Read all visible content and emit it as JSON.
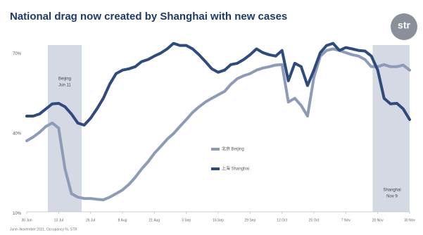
{
  "chart_data": {
    "type": "line",
    "title": "National drag now created by Shanghai with new cases",
    "logo": "str",
    "footer": "June–November 2021, Occupancy %, STR",
    "categories": [
      "30 Jun",
      null,
      null,
      null,
      null,
      "13 Jul",
      null,
      null,
      null,
      null,
      "26 Jul",
      null,
      null,
      null,
      null,
      "8 Aug",
      null,
      null,
      null,
      null,
      "21 Aug",
      null,
      null,
      null,
      null,
      "3 Sep",
      null,
      null,
      null,
      null,
      "16 Sep",
      null,
      null,
      null,
      null,
      "29 Sep",
      null,
      null,
      null,
      null,
      "12 Oct",
      null,
      null,
      null,
      null,
      "25 Oct",
      null,
      null,
      null,
      null,
      "7 Nov",
      null,
      null,
      null,
      null,
      "20 Nov",
      null,
      null,
      null,
      null,
      "30 Nov"
    ],
    "series": [
      {
        "name": "北京 Beijing",
        "color": "#8e9bb8",
        "values": [
          37.3,
          38.7,
          40.5,
          42.7,
          44,
          42.1,
          26.7,
          17.4,
          16.1,
          15.6,
          15.6,
          15.3,
          15.1,
          16.1,
          17.4,
          18.8,
          20.9,
          23.5,
          26.7,
          29.4,
          32.6,
          35.2,
          37.9,
          40,
          42.7,
          45.3,
          48,
          50.1,
          51.9,
          53.3,
          54.6,
          55.9,
          58.6,
          60.7,
          61.8,
          62.6,
          63.9,
          64.7,
          65.2,
          65.8,
          66,
          51.9,
          53.3,
          50.6,
          46.6,
          61.2,
          69.2,
          71.3,
          71.9,
          71.3,
          70.5,
          69.7,
          69.2,
          67.9,
          65.2,
          65.2,
          66,
          65.2,
          65.2,
          65.8,
          63.9
        ]
      },
      {
        "name": "上海 Shanghai",
        "color": "#2f4a7c",
        "values": [
          46.6,
          46.6,
          47.4,
          49.3,
          51.2,
          51.4,
          50.1,
          47.4,
          44,
          43.2,
          45.8,
          49.3,
          53.3,
          58.6,
          62.6,
          63.9,
          64.4,
          65.2,
          67.1,
          67.9,
          69.2,
          70.3,
          71.9,
          74,
          73.2,
          73.2,
          71.9,
          69.7,
          67.1,
          64.4,
          63.1,
          63.9,
          66,
          66.5,
          67.9,
          69.7,
          71.9,
          70.5,
          69.7,
          69.2,
          71.3,
          59.9,
          66.5,
          65.2,
          58.1,
          63.9,
          70.5,
          73.2,
          74,
          71.3,
          72.4,
          71.9,
          71.3,
          71.1,
          69.2,
          63.9,
          53.3,
          51.2,
          51.4,
          49.3,
          45.3
        ]
      }
    ],
    "shaded_periods": [
      {
        "label": [
          "Beijing",
          "Jun 11"
        ],
        "start": 3.3,
        "end": 8.6
      },
      {
        "label": [
          "Shanghai",
          "Nov 9"
        ],
        "start": 54.2,
        "end": 60
      }
    ],
    "ylim": [
      9,
      76
    ],
    "yticks": [
      {
        "value": 10,
        "label": "10%"
      },
      {
        "value": 40,
        "label": "40%"
      },
      {
        "value": 70,
        "label": "70%"
      }
    ],
    "grid": false
  }
}
